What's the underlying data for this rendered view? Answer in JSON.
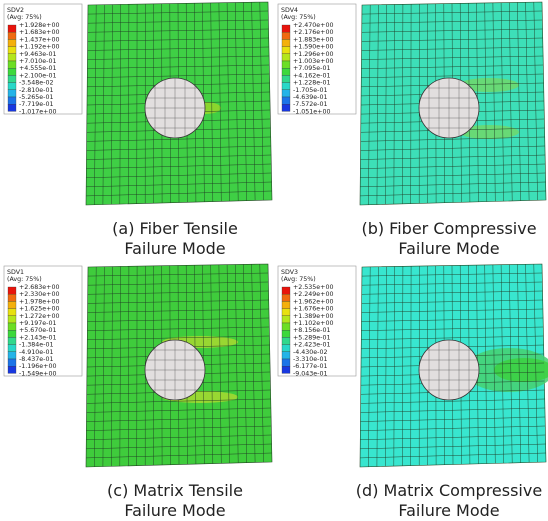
{
  "panels": [
    {
      "legend": {
        "title": "SDV2",
        "avg": "(Avg: 75%)",
        "labels": [
          "+1.928e+00",
          "+1.683e+00",
          "+1.437e+00",
          "+1.192e+00",
          "+9.463e-01",
          "+7.010e-01",
          "+4.555e-01",
          "+2.100e-01",
          "-3.548e-02",
          "-2.810e-01",
          "-5.265e-01",
          "-7.719e-01",
          "-1.017e+00"
        ]
      },
      "caption": [
        "(a) Fiber Tensile",
        "Failure Mode"
      ]
    },
    {
      "legend": {
        "title": "SDV4",
        "avg": "(Avg: 75%)",
        "labels": [
          "+2.470e+00",
          "+2.176e+00",
          "+1.883e+00",
          "+1.590e+00",
          "+1.296e+00",
          "+1.003e+00",
          "+7.095e-01",
          "+4.162e-01",
          "+1.228e-01",
          "-1.705e-01",
          "-4.639e-01",
          "-7.572e-01",
          "-1.051e+00"
        ]
      },
      "caption": [
        "(b) Fiber Compressive",
        "Failure Mode"
      ]
    },
    {
      "legend": {
        "title": "SDV1",
        "avg": "(Avg: 75%)",
        "labels": [
          "+2.683e+00",
          "+2.330e+00",
          "+1.978e+00",
          "+1.625e+00",
          "+1.272e+00",
          "+9.197e-01",
          "+5.670e-01",
          "+2.143e-01",
          "-1.384e-01",
          "-4.910e-01",
          "-8.437e-01",
          "-1.196e+00",
          "-1.549e+00"
        ]
      },
      "caption": [
        "(c) Matrix Tensile",
        "Failure Mode"
      ]
    },
    {
      "legend": {
        "title": "SDV3",
        "avg": "(Avg: 75%)",
        "labels": [
          "+2.535e+00",
          "+2.249e+00",
          "+1.962e+00",
          "+1.676e+00",
          "+1.389e+00",
          "+1.102e+00",
          "+8.156e-01",
          "+5.289e-01",
          "+2.423e-01",
          "-4.430e-02",
          "-3.310e-01",
          "-6.177e-01",
          "-9.043e-01"
        ]
      },
      "caption": [
        "(d) Matrix Compressive",
        "Failure Mode"
      ]
    }
  ]
}
